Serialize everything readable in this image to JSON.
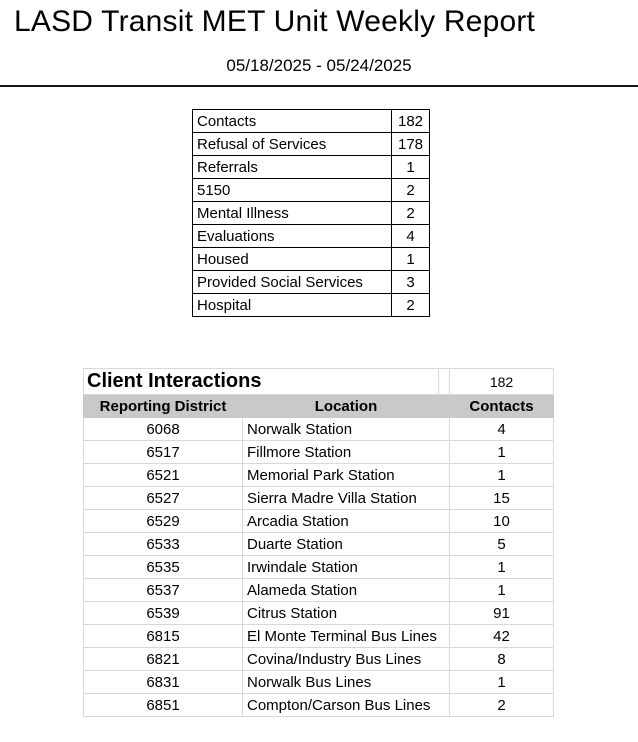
{
  "page": {
    "title": "LASD Transit MET Unit Weekly Report",
    "date_range": "05/18/2025 - 05/24/2025"
  },
  "summary_table": {
    "rows": [
      {
        "label": "Contacts",
        "value": "182"
      },
      {
        "label": "Refusal of Services",
        "value": "178"
      },
      {
        "label": "Referrals",
        "value": "1"
      },
      {
        "label": "5150",
        "value": "2"
      },
      {
        "label": "Mental Illness",
        "value": "2"
      },
      {
        "label": "Evaluations",
        "value": "4"
      },
      {
        "label": "Housed",
        "value": "1"
      },
      {
        "label": "Provided Social Services",
        "value": "3"
      },
      {
        "label": "Hospital",
        "value": "2"
      }
    ]
  },
  "client_interactions": {
    "title": "Client Interactions",
    "total": "182",
    "columns": [
      "Reporting District",
      "Location",
      "Contacts"
    ],
    "rows": [
      {
        "district": "6068",
        "location": "Norwalk Station",
        "contacts": "4"
      },
      {
        "district": "6517",
        "location": "Fillmore Station",
        "contacts": "1"
      },
      {
        "district": "6521",
        "location": "Memorial Park Station",
        "contacts": "1"
      },
      {
        "district": "6527",
        "location": "Sierra Madre Villa Station",
        "contacts": "15"
      },
      {
        "district": "6529",
        "location": "Arcadia Station",
        "contacts": "10"
      },
      {
        "district": "6533",
        "location": "Duarte Station",
        "contacts": "5"
      },
      {
        "district": "6535",
        "location": "Irwindale Station",
        "contacts": "1"
      },
      {
        "district": "6537",
        "location": "Alameda Station",
        "contacts": "1"
      },
      {
        "district": "6539",
        "location": "Citrus Station",
        "contacts": "91"
      },
      {
        "district": "6815",
        "location": "El Monte Terminal Bus Lines",
        "contacts": "42"
      },
      {
        "district": "6821",
        "location": "Covina/Industry Bus Lines",
        "contacts": "8"
      },
      {
        "district": "6831",
        "location": "Norwalk Bus Lines",
        "contacts": "1"
      },
      {
        "district": "6851",
        "location": "Compton/Carson Bus Lines",
        "contacts": "2"
      }
    ]
  },
  "colors": {
    "header_fill": "#c9c9c9",
    "grid_light": "#d8d8d8",
    "grid_black": "#000000",
    "rule_black": "#141414"
  }
}
